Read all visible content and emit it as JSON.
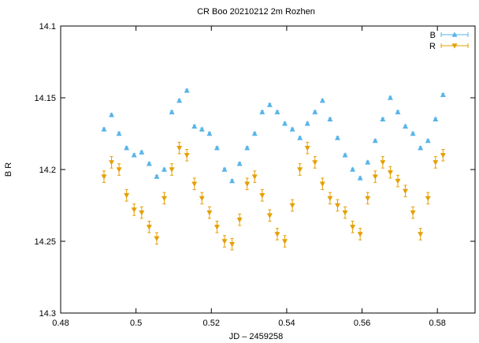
{
  "chart_data": {
    "type": "scatter",
    "title": "CR Boo 20210212 2m Rozhen",
    "xlabel": "JD – 2459258",
    "ylabel": "B R",
    "xlim": [
      0.48,
      0.59
    ],
    "ylim": [
      14.3,
      14.1
    ],
    "y_inverted": true,
    "x_ticks": [
      0.48,
      0.5,
      0.52,
      0.54,
      0.56,
      0.58
    ],
    "x_tick_labels": [
      "0.48",
      "0.5",
      "0.52",
      "0.54",
      "0.56",
      "0.58"
    ],
    "y_ticks": [
      14.1,
      14.15,
      14.2,
      14.25,
      14.3
    ],
    "y_tick_labels": [
      "14.1",
      "14.15",
      "14.2",
      "14.25",
      "14.3"
    ],
    "grid": false,
    "legend_position": "top-right",
    "series": [
      {
        "name": "B",
        "color": "#56b4e9",
        "marker": "triangle-up",
        "error": 0.001,
        "x": [
          0.4915,
          0.4935,
          0.4955,
          0.4975,
          0.4995,
          0.5015,
          0.5035,
          0.5055,
          0.5075,
          0.5095,
          0.5115,
          0.5135,
          0.5155,
          0.5175,
          0.5195,
          0.5215,
          0.5235,
          0.5255,
          0.5275,
          0.5295,
          0.5315,
          0.5335,
          0.5355,
          0.5375,
          0.5395,
          0.5415,
          0.5435,
          0.5455,
          0.5475,
          0.5495,
          0.5515,
          0.5535,
          0.5555,
          0.5575,
          0.5595,
          0.5615,
          0.5635,
          0.5655,
          0.5675,
          0.5695,
          0.5715,
          0.5735,
          0.5755,
          0.5775,
          0.5795,
          0.5815
        ],
        "y": [
          14.172,
          14.162,
          14.175,
          14.185,
          14.19,
          14.188,
          14.196,
          14.205,
          14.2,
          14.16,
          14.152,
          14.145,
          14.17,
          14.172,
          14.175,
          14.185,
          14.2,
          14.208,
          14.196,
          14.185,
          14.175,
          14.16,
          14.155,
          14.16,
          14.168,
          14.172,
          14.178,
          14.168,
          14.16,
          14.152,
          14.165,
          14.178,
          14.19,
          14.2,
          14.206,
          14.195,
          14.18,
          14.165,
          14.15,
          14.16,
          14.17,
          14.175,
          14.185,
          14.18,
          14.165,
          14.148
        ]
      },
      {
        "name": "R",
        "color": "#e69f00",
        "marker": "triangle-down",
        "error": 0.004,
        "x": [
          0.4915,
          0.4935,
          0.4955,
          0.4975,
          0.4995,
          0.5015,
          0.5035,
          0.5055,
          0.5075,
          0.5095,
          0.5115,
          0.5135,
          0.5155,
          0.5175,
          0.5195,
          0.5215,
          0.5235,
          0.5255,
          0.5275,
          0.5295,
          0.5315,
          0.5335,
          0.5355,
          0.5375,
          0.5395,
          0.5415,
          0.5435,
          0.5455,
          0.5475,
          0.5495,
          0.5515,
          0.5535,
          0.5555,
          0.5575,
          0.5595,
          0.5615,
          0.5635,
          0.5655,
          0.5675,
          0.5695,
          0.5715,
          0.5735,
          0.5755,
          0.5775,
          0.5795,
          0.5815
        ],
        "y": [
          14.205,
          14.195,
          14.2,
          14.218,
          14.228,
          14.23,
          14.24,
          14.248,
          14.22,
          14.2,
          14.185,
          14.19,
          14.21,
          14.22,
          14.23,
          14.24,
          14.25,
          14.252,
          14.235,
          14.21,
          14.205,
          14.218,
          14.232,
          14.245,
          14.25,
          14.225,
          14.2,
          14.185,
          14.195,
          14.21,
          14.22,
          14.225,
          14.23,
          14.24,
          14.245,
          14.22,
          14.205,
          14.195,
          14.202,
          14.208,
          14.215,
          14.23,
          14.245,
          14.22,
          14.195,
          14.19
        ]
      }
    ]
  }
}
